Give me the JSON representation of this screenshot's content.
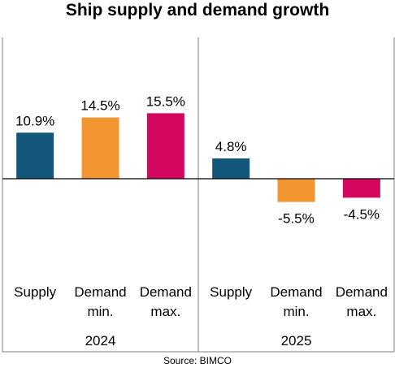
{
  "title": "Ship supply and demand growth",
  "source": "Source: BIMCO",
  "colors": {
    "supply": "#12567A",
    "demand_min": "#F39530",
    "demand_max": "#D2075D",
    "axis": "#000000",
    "frame": "#7F7F7F"
  },
  "chart_data": {
    "type": "bar",
    "title": "Ship supply and demand growth",
    "groups": [
      {
        "name": "2024",
        "bars": [
          {
            "category": [
              "Supply"
            ],
            "value": 10.9,
            "label": "10.9%",
            "color_key": "supply"
          },
          {
            "category": [
              "Demand",
              "min."
            ],
            "value": 14.5,
            "label": "14.5%",
            "color_key": "demand_min"
          },
          {
            "category": [
              "Demand",
              "max."
            ],
            "value": 15.5,
            "label": "15.5%",
            "color_key": "demand_max"
          }
        ]
      },
      {
        "name": "2025",
        "bars": [
          {
            "category": [
              "Supply"
            ],
            "value": 4.8,
            "label": "4.8%",
            "color_key": "supply"
          },
          {
            "category": [
              "Demand",
              "min."
            ],
            "value": -5.5,
            "label": "-5.5%",
            "color_key": "demand_min"
          },
          {
            "category": [
              "Demand",
              "max."
            ],
            "value": -4.5,
            "label": "-4.5%",
            "color_key": "demand_max"
          }
        ]
      }
    ],
    "ylim": [
      -16,
      16
    ],
    "grid": false,
    "legend": "none",
    "xlabel": "",
    "ylabel": ""
  }
}
